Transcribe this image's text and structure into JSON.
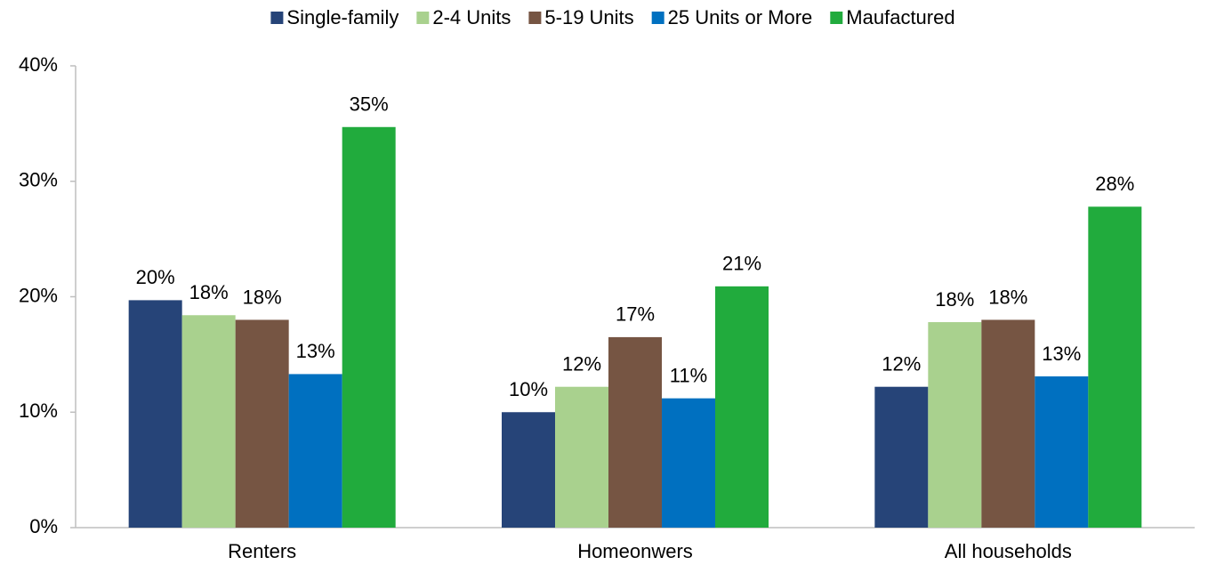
{
  "chart_data": {
    "type": "bar",
    "categories": [
      "Renters",
      "Homeonwers",
      "All households"
    ],
    "series": [
      {
        "name": "Single-family",
        "color": "#264478",
        "values": [
          19.7,
          10.0,
          12.2
        ],
        "value_labels": [
          "20%",
          "10%",
          "12%"
        ]
      },
      {
        "name": "2-4 Units",
        "color": "#a9d18e",
        "values": [
          18.4,
          12.2,
          17.8
        ],
        "value_labels": [
          "18%",
          "12%",
          "18%"
        ]
      },
      {
        "name": "5-19 Units",
        "color": "#765543",
        "values": [
          18.0,
          16.5,
          18.0
        ],
        "value_labels": [
          "18%",
          "17%",
          "18%"
        ]
      },
      {
        "name": "25 Units or More",
        "color": "#0070c0",
        "values": [
          13.3,
          11.2,
          13.1
        ],
        "value_labels": [
          "13%",
          "11%",
          "13%"
        ]
      },
      {
        "name": "Maufactured",
        "color": "#21ab3d",
        "values": [
          34.7,
          20.9,
          27.8
        ],
        "value_labels": [
          "35%",
          "21%",
          "28%"
        ]
      }
    ],
    "ylim": [
      0,
      40
    ],
    "yticks": [
      {
        "value": 0,
        "label": "0%"
      },
      {
        "value": 10,
        "label": "10%"
      },
      {
        "value": 20,
        "label": "20%"
      },
      {
        "value": 30,
        "label": "30%"
      },
      {
        "value": 40,
        "label": "40%"
      }
    ],
    "grid": false,
    "legend": "top"
  }
}
